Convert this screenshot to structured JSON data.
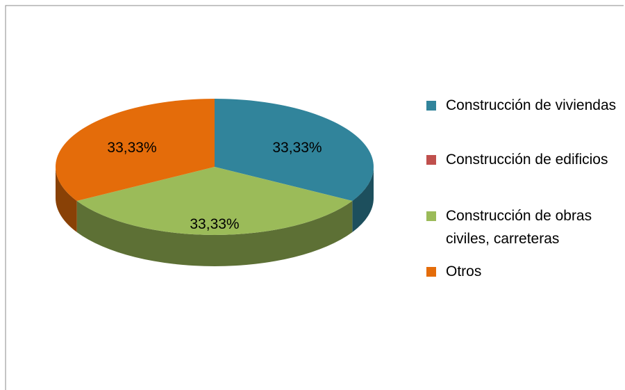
{
  "chart_data": {
    "type": "pie",
    "categories": [
      "Construcción de viviendas",
      "Construcción de edificios",
      "Construcción de obras civiles, carreteras",
      "Otros"
    ],
    "values": [
      33.33,
      0,
      33.33,
      33.33
    ],
    "value_labels": [
      "33,33%",
      null,
      "33,33%",
      "33,33%"
    ],
    "colors": [
      "#31849b",
      "#c0504d",
      "#9bbb59",
      "#e46c0a"
    ],
    "legend": "right"
  }
}
